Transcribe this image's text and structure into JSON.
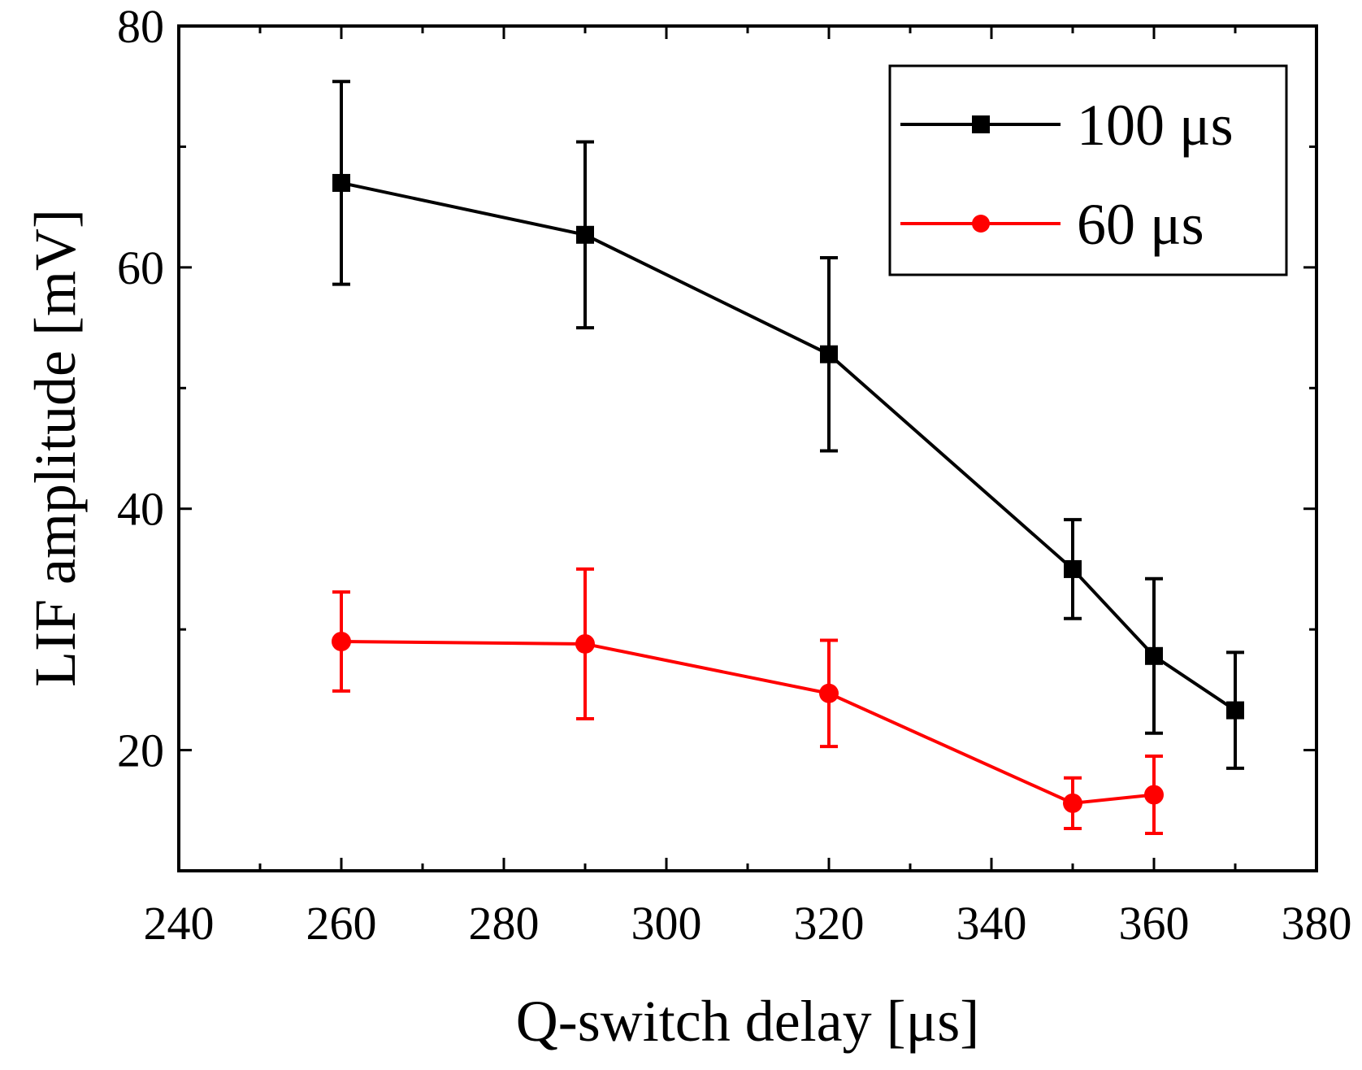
{
  "chart_data": {
    "type": "line",
    "title": "",
    "xlabel": "Q-switch delay [μs]",
    "ylabel": "LIF amplitude [mV]",
    "xlim": [
      240,
      380
    ],
    "ylim": [
      10,
      80
    ],
    "x_ticks": [
      240,
      260,
      280,
      300,
      320,
      340,
      360,
      380
    ],
    "y_ticks": [
      20,
      40,
      60,
      80
    ],
    "x_tick_labels": [
      "240",
      "260",
      "280",
      "300",
      "320",
      "340",
      "360",
      "380"
    ],
    "y_tick_labels": [
      "20",
      "40",
      "60",
      "80"
    ],
    "grid": false,
    "legend_position": "top-right",
    "series": [
      {
        "name": "100 μs",
        "color": "#000000",
        "marker": "square",
        "x": [
          260,
          290,
          320,
          350,
          360,
          370
        ],
        "y": [
          67.0,
          62.7,
          52.8,
          35.0,
          27.8,
          23.3
        ],
        "err": [
          8.4,
          7.7,
          8.0,
          4.1,
          6.4,
          4.8
        ]
      },
      {
        "name": "60 μs",
        "color": "#ff0000",
        "marker": "circle",
        "x": [
          260,
          290,
          320,
          350,
          360
        ],
        "y": [
          29.0,
          28.8,
          24.7,
          15.6,
          16.3
        ],
        "err": [
          4.1,
          6.2,
          4.4,
          2.1,
          3.2
        ]
      }
    ]
  }
}
